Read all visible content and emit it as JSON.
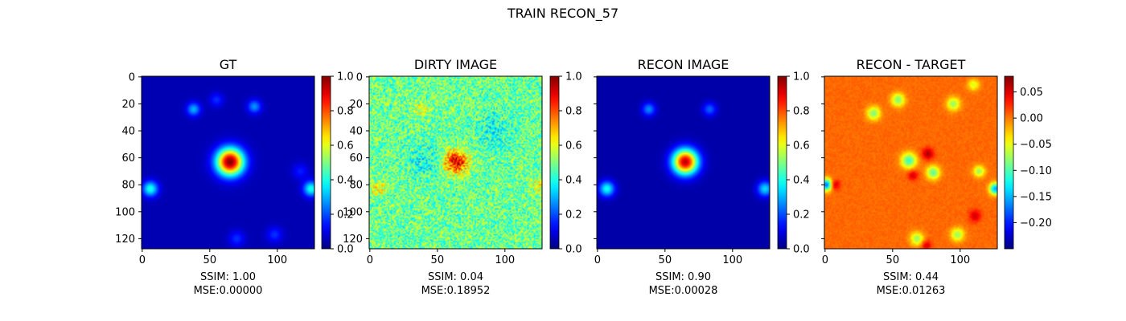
{
  "figure_title": "TRAIN RECON_57",
  "colormap": "jet",
  "chart_data": [
    {
      "type": "heatmap",
      "title": "GT",
      "xlim": [
        0,
        127
      ],
      "ylim": [
        127,
        0
      ],
      "x_ticks": [
        "0",
        "50",
        "100"
      ],
      "y_ticks": [
        "0",
        "20",
        "40",
        "60",
        "80",
        "100",
        "120"
      ],
      "colorbar": {
        "min": 0.0,
        "max": 1.0,
        "ticks": [
          "0.0",
          "0.2",
          "0.4",
          "0.6",
          "0.8",
          "1.0"
        ]
      },
      "background_value": 0.05,
      "noise_amplitude": 0,
      "features": [
        {
          "x": 65,
          "y": 63,
          "sigma": 7,
          "amp": 0.95
        },
        {
          "x": 38,
          "y": 24,
          "sigma": 3.5,
          "amp": 0.25
        },
        {
          "x": 55,
          "y": 17,
          "sigma": 3.5,
          "amp": 0.12
        },
        {
          "x": 83,
          "y": 22,
          "sigma": 3.5,
          "amp": 0.22
        },
        {
          "x": 6,
          "y": 83,
          "sigma": 4,
          "amp": 0.35
        },
        {
          "x": 125,
          "y": 83,
          "sigma": 4,
          "amp": 0.35
        },
        {
          "x": 70,
          "y": 120,
          "sigma": 4,
          "amp": 0.12
        },
        {
          "x": 98,
          "y": 117,
          "sigma": 4,
          "amp": 0.12
        },
        {
          "x": 117,
          "y": 70,
          "sigma": 4,
          "amp": 0.1
        }
      ],
      "ssim_label": "SSIM: 1.00",
      "mse_label": "MSE:0.00000"
    },
    {
      "type": "heatmap",
      "title": "DIRTY IMAGE",
      "xlim": [
        0,
        127
      ],
      "ylim": [
        127,
        0
      ],
      "x_ticks": [
        "0",
        "50",
        "100"
      ],
      "y_ticks": [
        "0",
        "20",
        "40",
        "60",
        "80",
        "100",
        "120"
      ],
      "colorbar": {
        "min": 0.0,
        "max": 1.0,
        "ticks": [
          "0.0",
          "0.2",
          "0.4",
          "0.6",
          "0.8",
          "1.0"
        ]
      },
      "background_value": 0.48,
      "noise_amplitude": 0.14,
      "features": [
        {
          "x": 64,
          "y": 63,
          "sigma": 6,
          "amp": 0.42
        },
        {
          "x": 38,
          "y": 24,
          "sigma": 4,
          "amp": 0.12
        },
        {
          "x": 6,
          "y": 83,
          "sigma": 4,
          "amp": 0.15
        },
        {
          "x": 125,
          "y": 80,
          "sigma": 4,
          "amp": 0.15
        },
        {
          "x": 40,
          "y": 62,
          "sigma": 8,
          "amp": -0.1
        },
        {
          "x": 92,
          "y": 40,
          "sigma": 10,
          "amp": -0.08
        }
      ],
      "ssim_label": "SSIM: 0.04",
      "mse_label": "MSE:0.18952"
    },
    {
      "type": "heatmap",
      "title": "RECON IMAGE",
      "xlim": [
        0,
        127
      ],
      "ylim": [
        127,
        0
      ],
      "x_ticks": [
        "0",
        "50",
        "100"
      ],
      "y_ticks": [],
      "colorbar": {
        "min": 0.0,
        "max": 1.0,
        "ticks": [
          "0.0",
          "0.2",
          "0.4",
          "0.6",
          "0.8",
          "1.0"
        ]
      },
      "background_value": 0.04,
      "noise_amplitude": 0,
      "features": [
        {
          "x": 65,
          "y": 63,
          "sigma": 6.5,
          "amp": 0.9
        },
        {
          "x": 38,
          "y": 24,
          "sigma": 3.5,
          "amp": 0.22
        },
        {
          "x": 83,
          "y": 24,
          "sigma": 3.5,
          "amp": 0.18
        },
        {
          "x": 7,
          "y": 83,
          "sigma": 4,
          "amp": 0.35
        },
        {
          "x": 124,
          "y": 83,
          "sigma": 4,
          "amp": 0.3
        }
      ],
      "ssim_label": "SSIM: 0.90",
      "mse_label": "MSE:0.00028"
    },
    {
      "type": "heatmap",
      "title": "RECON - TARGET",
      "xlim": [
        0,
        127
      ],
      "ylim": [
        127,
        0
      ],
      "x_ticks": [
        "0",
        "50",
        "100"
      ],
      "y_ticks": [],
      "colorbar": {
        "min": -0.25,
        "max": 0.08,
        "ticks": [
          "0.05",
          "0.00",
          "−0.05",
          "−0.10",
          "−0.15",
          "−0.20"
        ],
        "tick_values": [
          0.05,
          0.0,
          -0.05,
          -0.1,
          -0.15,
          -0.2
        ]
      },
      "background_value": 0.005,
      "noise_amplitude": 0.006,
      "features": [
        {
          "x": 36,
          "y": 27,
          "sigma": 3.5,
          "amp": -0.09
        },
        {
          "x": 54,
          "y": 17,
          "sigma": 3.5,
          "amp": -0.09
        },
        {
          "x": 95,
          "y": 20,
          "sigma": 3.5,
          "amp": -0.08
        },
        {
          "x": 62,
          "y": 62,
          "sigma": 4,
          "amp": -0.11
        },
        {
          "x": 76,
          "y": 57,
          "sigma": 3,
          "amp": 0.06
        },
        {
          "x": 80,
          "y": 71,
          "sigma": 3.5,
          "amp": -0.1
        },
        {
          "x": 65,
          "y": 73,
          "sigma": 2.5,
          "amp": 0.05
        },
        {
          "x": 114,
          "y": 70,
          "sigma": 3,
          "amp": -0.08
        },
        {
          "x": 1,
          "y": 80,
          "sigma": 3,
          "amp": -0.18
        },
        {
          "x": 7,
          "y": 80,
          "sigma": 2.5,
          "amp": 0.06
        },
        {
          "x": 126,
          "y": 83,
          "sigma": 3,
          "amp": -0.16
        },
        {
          "x": 111,
          "y": 103,
          "sigma": 3,
          "amp": 0.05
        },
        {
          "x": 68,
          "y": 120,
          "sigma": 3.5,
          "amp": -0.08
        },
        {
          "x": 75,
          "y": 125,
          "sigma": 2.5,
          "amp": 0.05
        },
        {
          "x": 98,
          "y": 117,
          "sigma": 3.5,
          "amp": -0.08
        },
        {
          "x": 110,
          "y": 6,
          "sigma": 3,
          "amp": -0.06
        }
      ],
      "ssim_label": "SSIM: 0.44",
      "mse_label": "MSE:0.01263"
    }
  ]
}
